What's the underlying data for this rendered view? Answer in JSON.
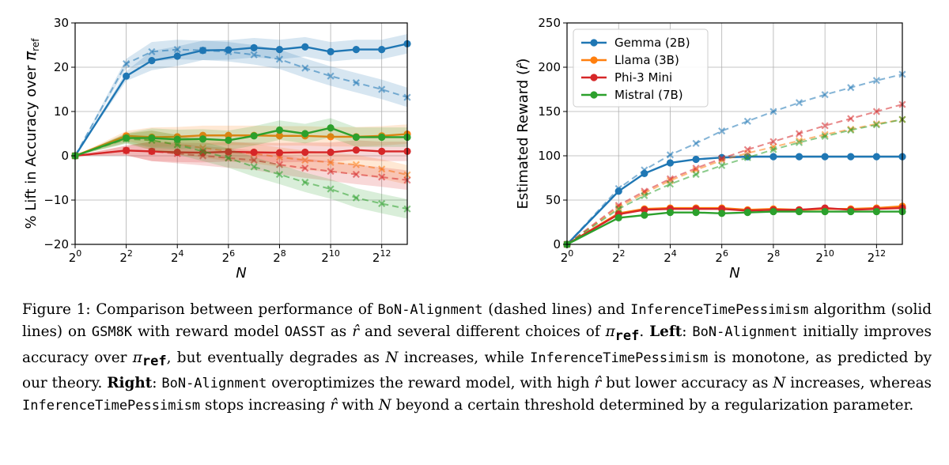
{
  "chart_data": [
    {
      "type": "line",
      "id": "left",
      "title": "",
      "xlabel": "N",
      "ylabel": "% Lift in Accuracy over π_ref",
      "x_log2": [
        0,
        2,
        3,
        4,
        5,
        6,
        7,
        8,
        9,
        10,
        11,
        12,
        13
      ],
      "xlim_log2": [
        0,
        13
      ],
      "ylim": [
        -20,
        30
      ],
      "yticks": [
        -20,
        -10,
        0,
        10,
        20,
        30
      ],
      "xticks_exponent": [
        0,
        2,
        4,
        6,
        8,
        10,
        12
      ],
      "grid": true,
      "series": [
        {
          "name": "Gemma (2B)",
          "color": "#1f77b4",
          "style": "solid",
          "values": [
            0,
            18,
            21.5,
            22.5,
            23.8,
            23.9,
            24.4,
            24,
            24.6,
            23.5,
            24,
            24,
            25.3
          ]
        },
        {
          "name": "Gemma (2B)",
          "color": "#1f77b4",
          "style": "dashed",
          "values": [
            0,
            20.8,
            23.5,
            24,
            23.8,
            23.5,
            22.8,
            21.8,
            19.8,
            18,
            16.5,
            15,
            13.2
          ]
        },
        {
          "name": "Llama (3B)",
          "color": "#ff7f0e",
          "style": "solid",
          "values": [
            0,
            4.5,
            4.2,
            4.3,
            4.6,
            4.6,
            4.6,
            4.5,
            4.5,
            4.3,
            4.3,
            4.5,
            4.9
          ]
        },
        {
          "name": "Llama (3B)",
          "color": "#ff7f0e",
          "style": "dashed",
          "values": [
            0,
            4,
            3.5,
            2.5,
            1.8,
            1,
            0.5,
            -0.3,
            -1,
            -1.5,
            -2,
            -3,
            -4.3
          ]
        },
        {
          "name": "Phi-3 Mini",
          "color": "#d62728",
          "style": "solid",
          "values": [
            0,
            1.2,
            1,
            0.8,
            0.7,
            0.9,
            0.8,
            0.7,
            0.8,
            0.8,
            1.3,
            1,
            1
          ]
        },
        {
          "name": "Phi-3 Mini",
          "color": "#d62728",
          "style": "dashed",
          "values": [
            0,
            1.2,
            1,
            0.5,
            0,
            -0.5,
            -1,
            -2,
            -2.8,
            -3.5,
            -4.2,
            -4.8,
            -5.5
          ]
        },
        {
          "name": "Mistral (7B)",
          "color": "#2ca02c",
          "style": "solid",
          "values": [
            0,
            4,
            4,
            3.7,
            3.8,
            3.5,
            4.5,
            5.8,
            5,
            6.3,
            4.2,
            4.2,
            4.2
          ]
        },
        {
          "name": "Mistral (7B)",
          "color": "#2ca02c",
          "style": "dashed",
          "values": [
            0,
            3.8,
            3.5,
            2.5,
            1,
            -0.5,
            -2.5,
            -4.2,
            -6,
            -7.5,
            -9.5,
            -10.8,
            -12
          ]
        }
      ]
    },
    {
      "type": "line",
      "id": "right",
      "title": "",
      "xlabel": "N",
      "ylabel": "Estimated Reward (r̂)",
      "x_log2": [
        0,
        2,
        3,
        4,
        5,
        6,
        7,
        8,
        9,
        10,
        11,
        12,
        13
      ],
      "xlim_log2": [
        0,
        13
      ],
      "ylim": [
        0,
        250
      ],
      "yticks": [
        0,
        50,
        100,
        150,
        200,
        250
      ],
      "xticks_exponent": [
        0,
        2,
        4,
        6,
        8,
        10,
        12
      ],
      "grid": true,
      "legend_position": "top-left",
      "series": [
        {
          "name": "Gemma (2B)",
          "color": "#1f77b4",
          "style": "solid",
          "values": [
            0,
            60,
            80,
            92,
            96,
            98,
            99,
            99,
            99,
            99,
            99,
            99,
            99
          ]
        },
        {
          "name": "Gemma (2B)",
          "color": "#1f77b4",
          "style": "dashed",
          "values": [
            0,
            63,
            84,
            101,
            114,
            128,
            139,
            150,
            160,
            169,
            177,
            185,
            192
          ]
        },
        {
          "name": "Llama (3B)",
          "color": "#ff7f0e",
          "style": "solid",
          "values": [
            0,
            35,
            40,
            41,
            41,
            41,
            39,
            40,
            39,
            40,
            40,
            41,
            43
          ]
        },
        {
          "name": "Llama (3B)",
          "color": "#ff7f0e",
          "style": "dashed",
          "values": [
            0,
            42,
            58,
            72,
            84,
            95,
            103,
            110,
            117,
            124,
            130,
            136,
            141
          ]
        },
        {
          "name": "Phi-3 Mini",
          "color": "#d62728",
          "style": "solid",
          "values": [
            0,
            34,
            39,
            40,
            40,
            40,
            38,
            39,
            39,
            41,
            39,
            40,
            41
          ]
        },
        {
          "name": "Phi-3 Mini",
          "color": "#d62728",
          "style": "dashed",
          "values": [
            0,
            44,
            60,
            74,
            86,
            97,
            107,
            116,
            125,
            134,
            142,
            150,
            158
          ]
        },
        {
          "name": "Mistral (7B)",
          "color": "#2ca02c",
          "style": "solid",
          "values": [
            0,
            30,
            33,
            36,
            36,
            35,
            36,
            37,
            37,
            37,
            37,
            37,
            37
          ]
        },
        {
          "name": "Mistral (7B)",
          "color": "#2ca02c",
          "style": "dashed",
          "values": [
            0,
            40,
            55,
            68,
            79,
            89,
            98,
            107,
            115,
            122,
            129,
            135,
            141
          ]
        }
      ]
    }
  ],
  "legend": [
    {
      "label": "Gemma (2B)",
      "color": "#1f77b4"
    },
    {
      "label": "Llama (3B)",
      "color": "#ff7f0e"
    },
    {
      "label": "Phi-3 Mini",
      "color": "#d62728"
    },
    {
      "label": "Mistral (7B)",
      "color": "#2ca02c"
    }
  ],
  "caption": {
    "figure_label": "Figure 1:",
    "t1": " Comparison between performance of ",
    "bon": "BoN-Alignment",
    "t2": " (dashed lines) and ",
    "itp": "InferenceTimePessimism",
    "t3": " algorithm (solid lines) on ",
    "dataset": "GSM8K",
    "t4": " with reward model ",
    "rm": "OASST",
    "t5": " as ",
    "rhat": "r̂",
    "t6": " and several different choices of ",
    "pi": "π",
    "pi_sub": "ref",
    "t7": ".",
    "left_label": "Left",
    "t8": ": ",
    "t9": " initially improves accuracy over ",
    "t10": ", but eventually degrades as ",
    "n": "N",
    "t11": " increases, while ",
    "t12": " is monotone, as predicted by our theory. ",
    "right_label": "Right",
    "t13": ": ",
    "t14": " overoptimizes the reward model, with high ",
    "t15": " but lower accuracy as ",
    "t16": " increases, whereas ",
    "t17": " stops increasing ",
    "t18": " with ",
    "t19": " beyond a certain threshold determined by a regularization parameter."
  }
}
